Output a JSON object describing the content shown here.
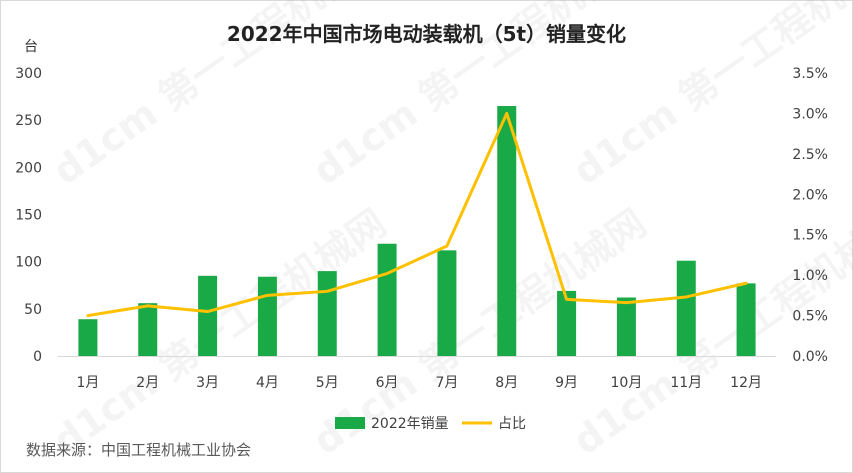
{
  "title": "2022年中国市场电动装载机（5t）销量变化",
  "unit_left": "台",
  "source": "数据来源：中国工程机械工业协会",
  "colors": {
    "bar": "#1aa947",
    "line": "#ffc000",
    "axis_text": "#404040",
    "grid": "#d9d9d9"
  },
  "chart_data": {
    "type": "bar",
    "title": "2022年中国市场电动装载机（5t）销量变化",
    "categories": [
      "1月",
      "2月",
      "3月",
      "4月",
      "5月",
      "6月",
      "7月",
      "8月",
      "9月",
      "10月",
      "11月",
      "12月"
    ],
    "series": [
      {
        "name": "2022年销量",
        "type": "bar",
        "axis": "left",
        "values": [
          39,
          56,
          85,
          84,
          90,
          119,
          112,
          265,
          69,
          62,
          101,
          77
        ]
      },
      {
        "name": "占比",
        "type": "line",
        "axis": "right",
        "values": [
          0.5,
          0.62,
          0.55,
          0.75,
          0.8,
          1.02,
          1.36,
          3.0,
          0.7,
          0.66,
          0.73,
          0.9
        ]
      }
    ],
    "y_left": {
      "min": 0,
      "max": 300,
      "ticks": [
        "0",
        "50",
        "100",
        "150",
        "200",
        "250",
        "300"
      ]
    },
    "y_right": {
      "min": 0,
      "max": 3.5,
      "ticks": [
        "0.0%",
        "0.5%",
        "1.0%",
        "1.5%",
        "2.0%",
        "2.5%",
        "3.0%",
        "3.5%"
      ]
    },
    "legend": [
      "2022年销量",
      "占比"
    ],
    "legend_position": "bottom",
    "grid": false
  }
}
